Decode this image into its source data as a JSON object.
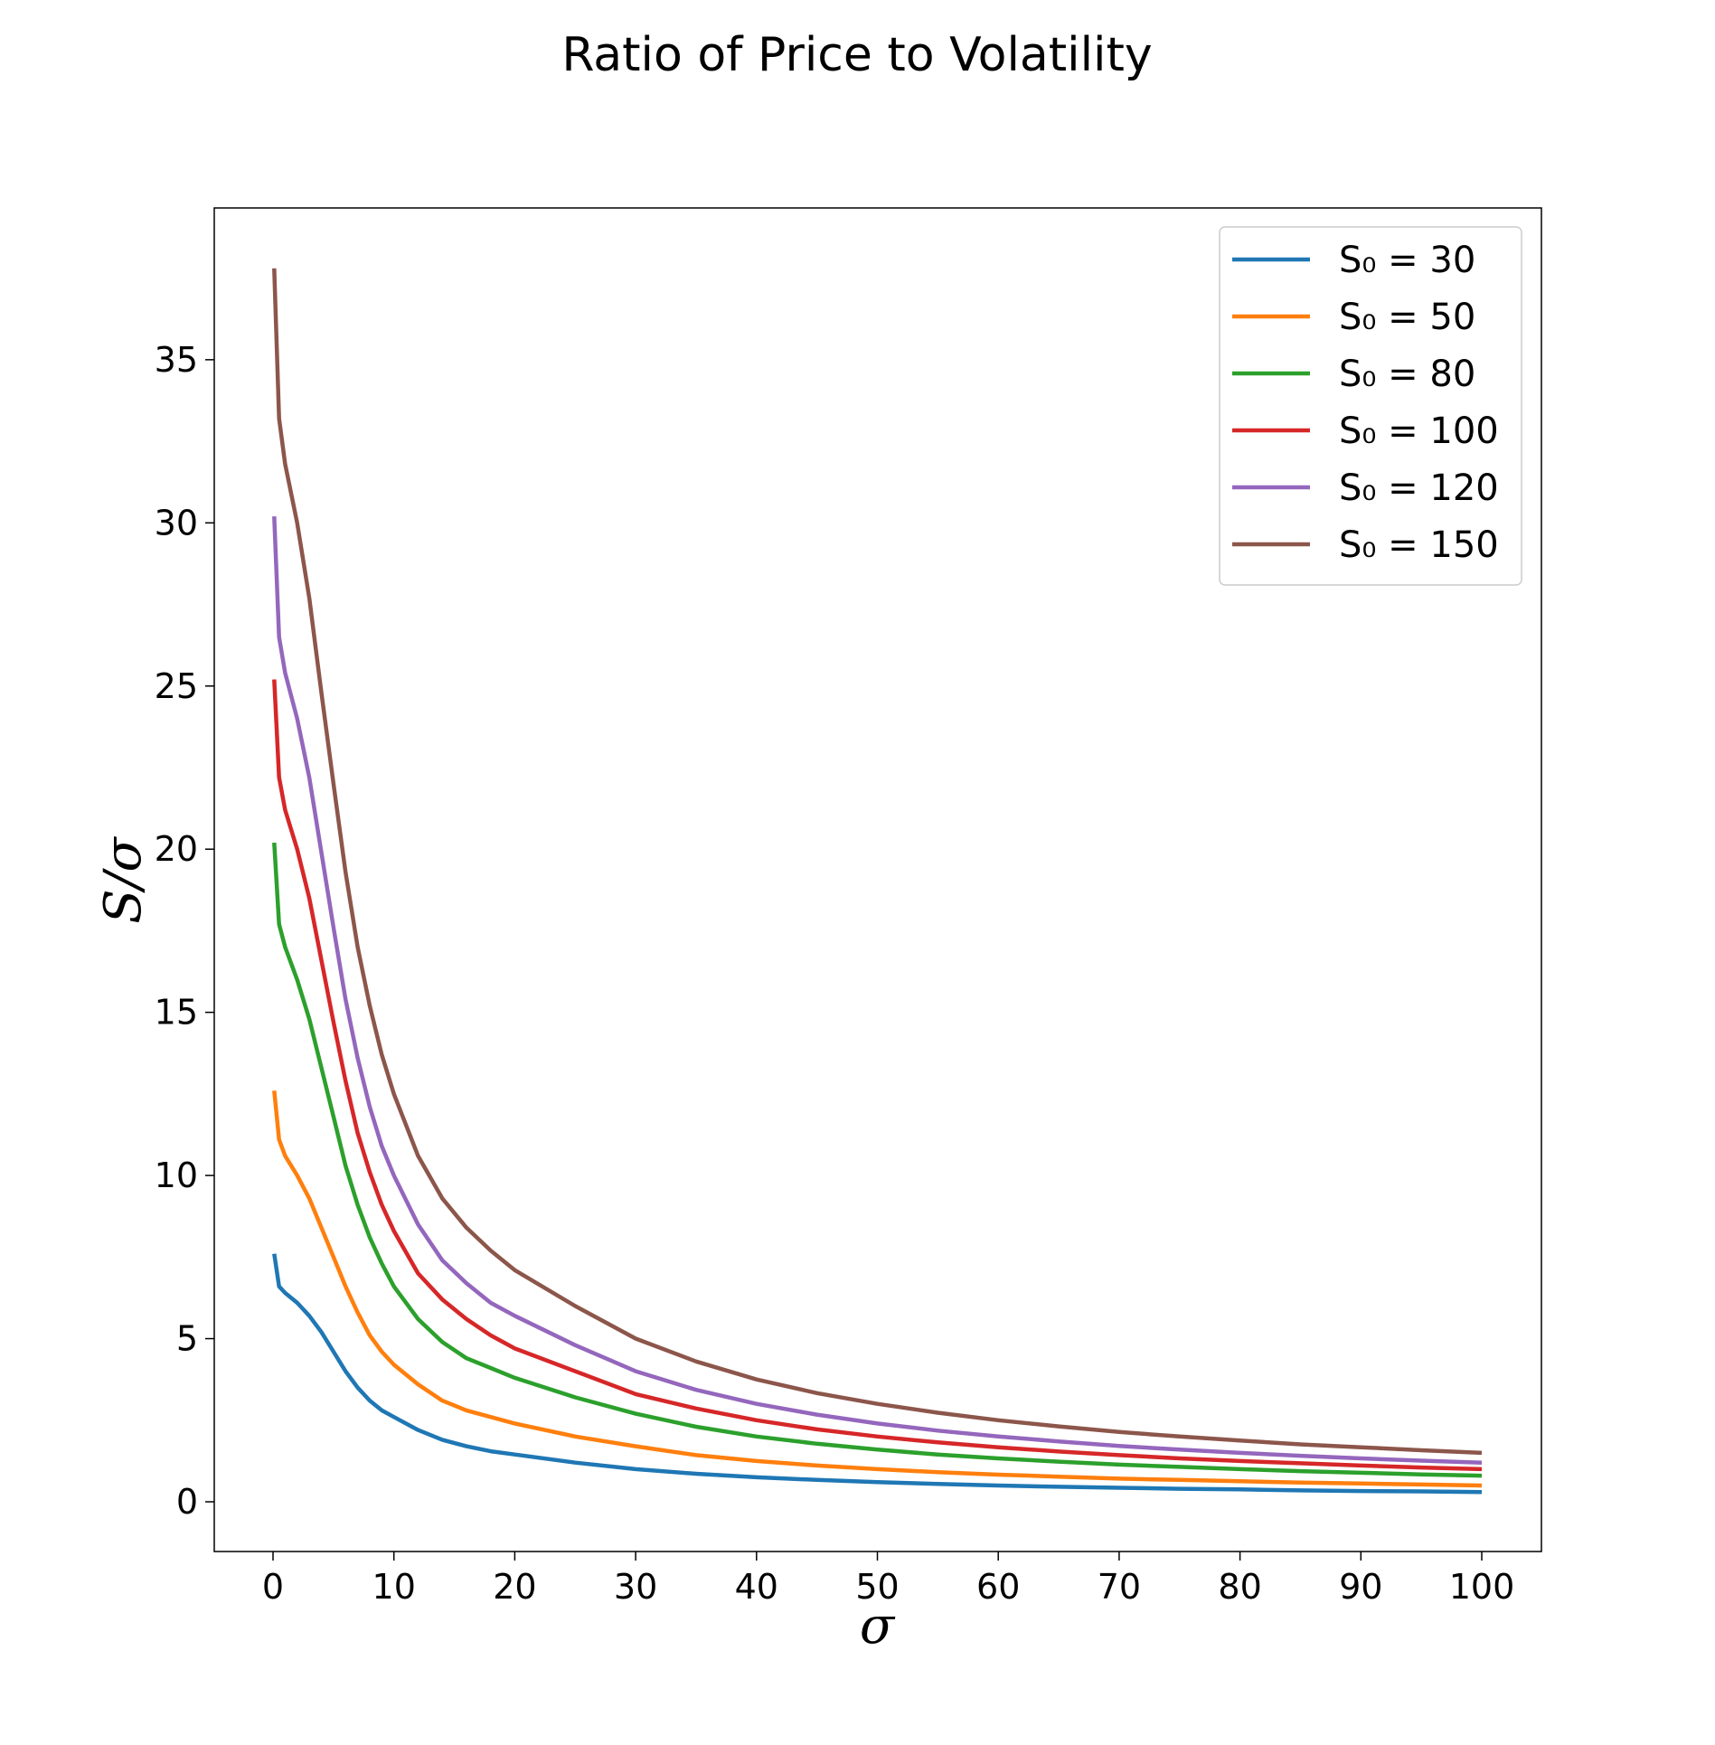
{
  "chart_data": {
    "type": "line",
    "title": "Ratio of Price to Volatility",
    "xlabel": "σ",
    "ylabel": "S/σ",
    "xlim": [
      -5,
      105
    ],
    "ylim": [
      -1.5,
      55
    ],
    "xticks": [
      0,
      10,
      20,
      30,
      40,
      50,
      60,
      70,
      80,
      90,
      100
    ],
    "yticks": [
      0,
      5,
      10,
      15,
      20,
      25,
      30,
      35
    ],
    "grid": false,
    "legend": {
      "position": "top-right"
    },
    "x": [
      0.1,
      0.5,
      1,
      2,
      3,
      4,
      5,
      6,
      7,
      8,
      9,
      10,
      12,
      14,
      16,
      18,
      20,
      25,
      30,
      35,
      40,
      45,
      50,
      55,
      60,
      65,
      70,
      75,
      80,
      85,
      90,
      95,
      100
    ],
    "series": [
      {
        "name": "S₀ = 30",
        "color": "#1f77b4",
        "values": [
          7.6,
          6.6,
          6.4,
          6.1,
          5.7,
          5.2,
          4.6,
          4.0,
          3.5,
          3.1,
          2.8,
          2.6,
          2.2,
          1.9,
          1.7,
          1.55,
          1.45,
          1.2,
          1.0,
          0.86,
          0.75,
          0.67,
          0.6,
          0.55,
          0.5,
          0.46,
          0.43,
          0.4,
          0.38,
          0.35,
          0.33,
          0.32,
          0.3
        ]
      },
      {
        "name": "S₀ = 50",
        "color": "#ff7f0e",
        "values": [
          12.6,
          11.1,
          10.6,
          10.0,
          9.3,
          8.4,
          7.5,
          6.6,
          5.8,
          5.1,
          4.6,
          4.2,
          3.6,
          3.1,
          2.8,
          2.6,
          2.4,
          2.0,
          1.7,
          1.43,
          1.25,
          1.11,
          1.0,
          0.91,
          0.83,
          0.77,
          0.71,
          0.67,
          0.63,
          0.59,
          0.56,
          0.53,
          0.5
        ]
      },
      {
        "name": "S₀ = 80",
        "color": "#2ca02c",
        "values": [
          20.2,
          17.7,
          17.0,
          16.0,
          14.8,
          13.3,
          11.8,
          10.3,
          9.1,
          8.1,
          7.3,
          6.6,
          5.6,
          4.9,
          4.4,
          4.1,
          3.8,
          3.2,
          2.7,
          2.3,
          2.0,
          1.78,
          1.6,
          1.45,
          1.33,
          1.23,
          1.14,
          1.07,
          1.0,
          0.94,
          0.89,
          0.84,
          0.8
        ]
      },
      {
        "name": "S₀ = 100",
        "color": "#d62728",
        "values": [
          25.2,
          22.2,
          21.2,
          20.0,
          18.5,
          16.6,
          14.7,
          12.9,
          11.3,
          10.1,
          9.1,
          8.3,
          7.0,
          6.2,
          5.6,
          5.1,
          4.7,
          4.0,
          3.3,
          2.86,
          2.5,
          2.22,
          2.0,
          1.82,
          1.67,
          1.54,
          1.43,
          1.33,
          1.25,
          1.18,
          1.11,
          1.05,
          1.0
        ]
      },
      {
        "name": "S₀ = 120",
        "color": "#9467bd",
        "values": [
          30.2,
          26.5,
          25.4,
          24.0,
          22.2,
          19.9,
          17.6,
          15.4,
          13.6,
          12.1,
          10.9,
          10.0,
          8.5,
          7.4,
          6.7,
          6.1,
          5.7,
          4.8,
          4.0,
          3.43,
          3.0,
          2.67,
          2.4,
          2.18,
          2.0,
          1.85,
          1.71,
          1.6,
          1.5,
          1.41,
          1.33,
          1.26,
          1.2
        ]
      },
      {
        "name": "S₀ = 150",
        "color": "#8c564b",
        "values": [
          37.8,
          33.2,
          31.8,
          30.0,
          27.7,
          24.8,
          22.0,
          19.3,
          17.0,
          15.2,
          13.7,
          12.5,
          10.6,
          9.3,
          8.4,
          7.7,
          7.1,
          6.0,
          5.0,
          4.3,
          3.75,
          3.33,
          3.0,
          2.73,
          2.5,
          2.31,
          2.14,
          2.0,
          1.88,
          1.76,
          1.67,
          1.58,
          1.5
        ]
      }
    ]
  }
}
